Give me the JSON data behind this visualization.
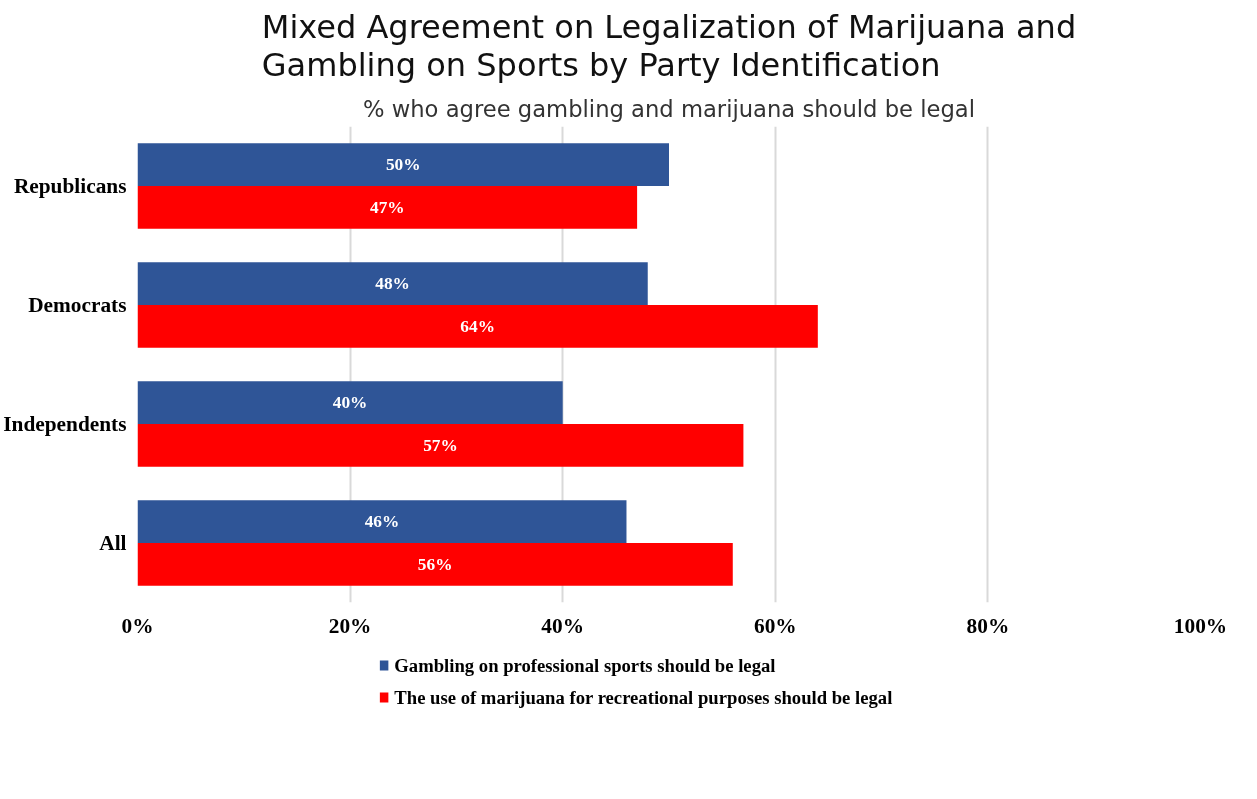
{
  "chart_data": {
    "type": "bar",
    "orientation": "horizontal",
    "title": "Mixed Agreement on Legalization of Marijuana and Gambling on Sports by Party Identification",
    "subtitle": "% who agree gambling and marijuana should be legal",
    "categories": [
      "Republicans",
      "Democrats",
      "Independents",
      "All"
    ],
    "series": [
      {
        "name": "Gambling on professional sports should be legal",
        "color": "#2f5597",
        "values": [
          50,
          48,
          40,
          46
        ],
        "value_labels": [
          "50%",
          "48%",
          "40%",
          "46%"
        ]
      },
      {
        "name": "The use of marijuana for recreational purposes should be legal",
        "color": "#ff0000",
        "values": [
          47,
          64,
          57,
          56
        ],
        "value_labels": [
          "47%",
          "64%",
          "57%",
          "56%"
        ]
      }
    ],
    "xlim": [
      0,
      100
    ],
    "xticks": [
      {
        "value": 0,
        "label": "0%"
      },
      {
        "value": 20,
        "label": "20%"
      },
      {
        "value": 40,
        "label": "40%"
      },
      {
        "value": 60,
        "label": "60%"
      },
      {
        "value": 80,
        "label": "80%"
      },
      {
        "value": 100,
        "label": "100%"
      }
    ],
    "grid": "x",
    "legend": "bottom"
  }
}
